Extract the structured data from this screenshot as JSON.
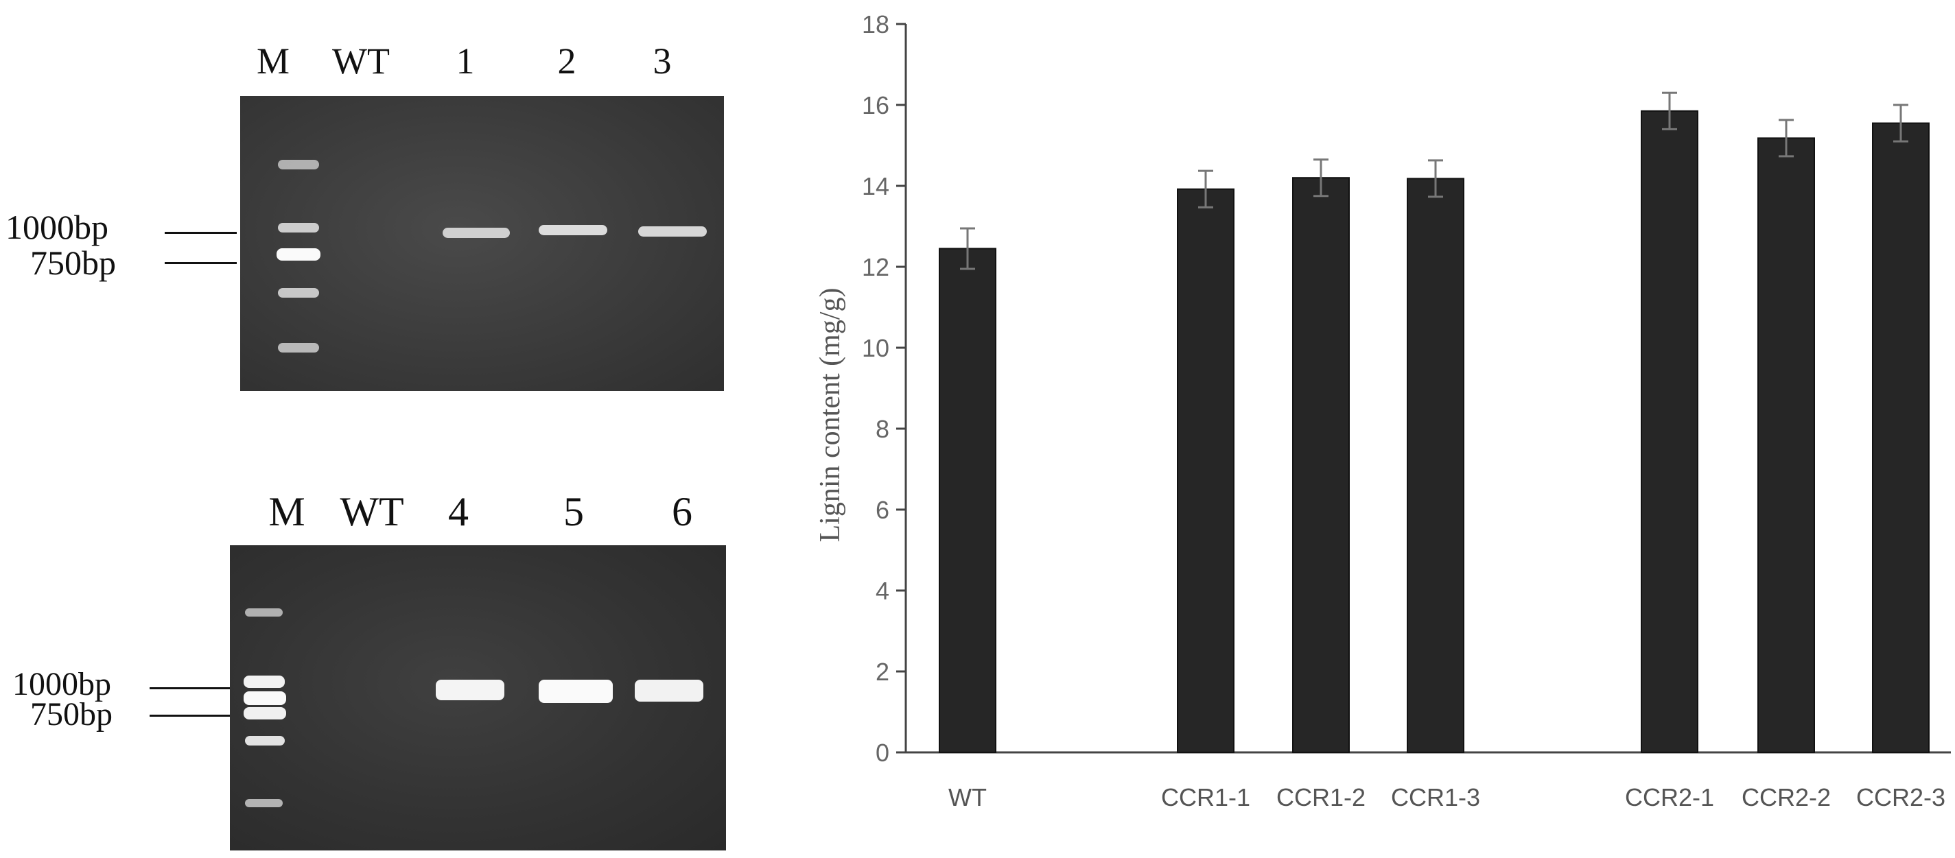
{
  "gel_top": {
    "lanes": [
      "M",
      "WT",
      "1",
      "2",
      "3"
    ],
    "markers": [
      "1000bp",
      "750bp"
    ]
  },
  "gel_bottom": {
    "lanes": [
      "M",
      "WT",
      "4",
      "5",
      "6"
    ],
    "markers": [
      "1000bp",
      "750bp"
    ]
  },
  "chart_data": {
    "type": "bar",
    "categories": [
      "WT",
      "CCR1-1",
      "CCR1-2",
      "CCR1-3",
      "CCR2-1",
      "CCR2-2",
      "CCR2-3"
    ],
    "values": [
      12.45,
      13.92,
      14.2,
      14.18,
      15.85,
      15.18,
      15.55
    ],
    "errors": [
      0.5,
      0.45,
      0.45,
      0.45,
      0.45,
      0.45,
      0.45
    ],
    "ylabel": "Lignin content (mg/g)",
    "xlabel": "",
    "ylim": [
      0,
      18
    ],
    "yticks": [
      "0",
      "2",
      "4",
      "6",
      "8",
      "10",
      "12",
      "14",
      "16",
      "18"
    ],
    "bar_color": "#262626",
    "grid": false
  }
}
